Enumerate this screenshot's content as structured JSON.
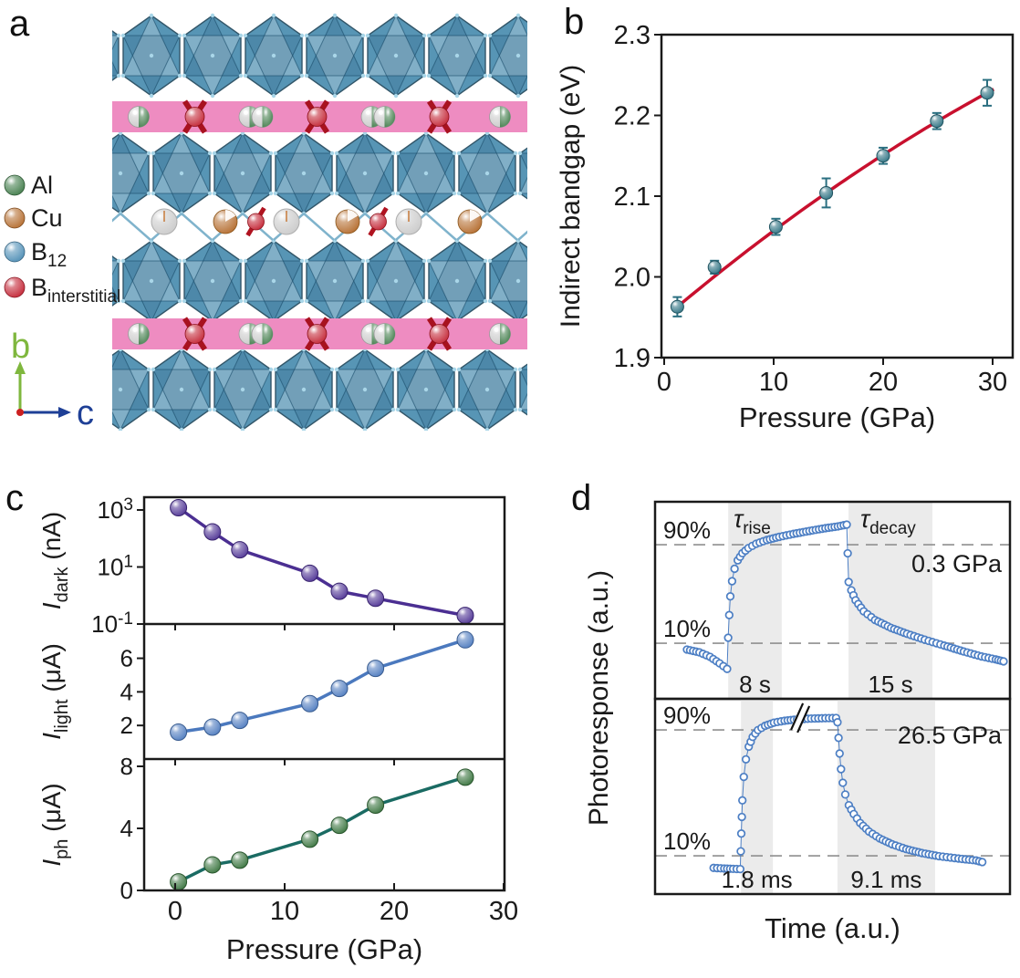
{
  "panel_labels": {
    "a": "a",
    "b": "b",
    "c": "c",
    "d": "d"
  },
  "panel_a": {
    "legend": [
      {
        "label": "Al",
        "sub": "",
        "color": "#3e7a47"
      },
      {
        "label": "Cu",
        "sub": "",
        "color": "#b3692a"
      },
      {
        "label": "B",
        "sub": "12",
        "color": "#4b8cb4"
      },
      {
        "label": "B",
        "sub": "interstitial",
        "color": "#c22030"
      }
    ],
    "axis_vertical": {
      "label": "b",
      "color": "#7fb73e"
    },
    "axis_horizontal": {
      "label": "c",
      "color": "#1e3f96"
    },
    "band_color": "#ee8cc1",
    "polyhedron_color": "#5795b5",
    "atom_white": "#f2f2f2"
  },
  "chart_data": [
    {
      "id": "bandgap",
      "type": "scatter",
      "title": "",
      "xlabel": "Pressure (GPa)",
      "ylabel": "Indirect bandgap (eV)",
      "xlim": [
        -0.8,
        32
      ],
      "ylim": [
        1.9,
        2.3
      ],
      "xticks": [
        0,
        10,
        20,
        30
      ],
      "yticks": [
        "1.9",
        "2.0",
        "2.1",
        "2.2",
        "2.3"
      ],
      "ytick_values": [
        1.9,
        2.0,
        2.1,
        2.2,
        2.3
      ],
      "x": [
        1.2,
        4.6,
        10.2,
        14.8,
        20.0,
        24.9,
        29.5
      ],
      "y": [
        1.963,
        2.012,
        2.062,
        2.104,
        2.15,
        2.193,
        2.228
      ],
      "yerr": [
        0.012,
        0.008,
        0.01,
        0.018,
        0.01,
        0.01,
        0.016
      ],
      "fit": {
        "c0": 1.9493,
        "c1": 0.011462,
        "c2": -6.835e-05,
        "range": [
          0.9,
          30.2
        ]
      },
      "marker_color": "#2a6f80",
      "fit_color": "#c8102e",
      "grid": false,
      "legend_pos": "none"
    },
    {
      "id": "currents",
      "type": "line",
      "xlabel": "Pressure (GPa)",
      "xticks": [
        0,
        10,
        20,
        30
      ],
      "xlim": [
        -2.8,
        30
      ],
      "x": [
        0.3,
        3.4,
        5.9,
        12.3,
        15.0,
        18.3,
        26.5
      ],
      "subplots": [
        {
          "ylabel": {
            "pre": "I",
            "sub": "dark",
            "post": " (nA)"
          },
          "yscale": "log",
          "ylim": [
            0.1,
            2800
          ],
          "yticks": [
            {
              "base": "10",
              "sup": "3"
            },
            {
              "base": "10",
              "sup": "1"
            },
            {
              "base": "10",
              "sup": "-1"
            }
          ],
          "ytick_values": [
            1000,
            10,
            0.1
          ],
          "values": [
            1200,
            170,
            40,
            6,
            1.4,
            0.8,
            0.2
          ],
          "line_color": "#4b2f92",
          "marker_color": "#4b2f92"
        },
        {
          "ylabel": {
            "pre": "I",
            "sub": "light",
            "post": " (μA)"
          },
          "yscale": "linear",
          "ylim": [
            0,
            8.04
          ],
          "yticks": [
            "2",
            "4",
            "6"
          ],
          "ytick_values": [
            2,
            4,
            6
          ],
          "values": [
            1.6,
            1.9,
            2.3,
            3.3,
            4.2,
            5.4,
            7.1
          ],
          "line_color": "#4b79be",
          "marker_color": "#4b79be"
        },
        {
          "ylabel": {
            "pre": "I",
            "sub": "ph",
            "post": " (μA)"
          },
          "yscale": "linear",
          "ylim": [
            0,
            8.47
          ],
          "yticks": [
            "0",
            "4",
            "8"
          ],
          "ytick_values": [
            0,
            4,
            8
          ],
          "values": [
            0.55,
            1.65,
            1.95,
            3.3,
            4.2,
            5.5,
            7.3
          ],
          "line_color": "#1a6b63",
          "marker_color": "#35713a"
        }
      ]
    },
    {
      "id": "photoresponse",
      "type": "scatter",
      "xlabel": "Time (a.u.)",
      "ylabel": "Photoresponse (a.u.)",
      "marker_color": "#4d7fc4",
      "shade_color": "#ebebeb",
      "dash_color": "#8f8f8f",
      "traces": [
        {
          "pressure": "0.3 GPa",
          "tau_rise": {
            "pre": "τ",
            "sub": "rise"
          },
          "tau_decay": {
            "pre": "τ",
            "sub": "decay"
          },
          "rise_time": "8 s",
          "decay_time": "15 s",
          "high_label": "90%",
          "low_label": "10%",
          "high": 0.218,
          "low": 0.718,
          "rise_region": [
            0.206,
            0.357
          ],
          "decay_region": [
            0.545,
            0.7815
          ],
          "points": [
            [
              0.09,
              0.75
            ],
            [
              0.125,
              0.764
            ],
            [
              0.155,
              0.787
            ],
            [
              0.182,
              0.82
            ],
            [
              0.203,
              0.848
            ],
            [
              0.206,
              0.69
            ],
            [
              0.209,
              0.575
            ],
            [
              0.212,
              0.48
            ],
            [
              0.217,
              0.403
            ],
            [
              0.224,
              0.34
            ],
            [
              0.233,
              0.297
            ],
            [
              0.246,
              0.261
            ],
            [
              0.263,
              0.235
            ],
            [
              0.285,
              0.213
            ],
            [
              0.315,
              0.194
            ],
            [
              0.35,
              0.178
            ],
            [
              0.39,
              0.163
            ],
            [
              0.435,
              0.148
            ],
            [
              0.48,
              0.134
            ],
            [
              0.515,
              0.125
            ],
            [
              0.54,
              0.116
            ],
            [
              0.5455,
              0.407
            ],
            [
              0.553,
              0.449
            ],
            [
              0.565,
              0.5
            ],
            [
              0.588,
              0.556
            ],
            [
              0.62,
              0.6
            ],
            [
              0.665,
              0.64
            ],
            [
              0.71,
              0.67
            ],
            [
              0.76,
              0.7
            ],
            [
              0.815,
              0.73
            ],
            [
              0.87,
              0.76
            ],
            [
              0.92,
              0.785
            ],
            [
              0.96,
              0.8
            ],
            [
              0.982,
              0.81
            ]
          ]
        },
        {
          "pressure": "26.5 GPa",
          "rise_time": "1.8 ms",
          "decay_time": "9.1 ms",
          "high_label": "90%",
          "low_label": "10%",
          "high": 0.159,
          "low": 0.804,
          "rise_region": [
            0.242,
            0.332
          ],
          "decay_region": [
            0.514,
            0.789
          ],
          "break_x": 0.409,
          "points": [
            [
              0.165,
              0.866
            ],
            [
              0.195,
              0.869
            ],
            [
              0.22,
              0.871
            ],
            [
              0.24,
              0.872
            ],
            [
              0.243,
              0.69
            ],
            [
              0.246,
              0.52
            ],
            [
              0.25,
              0.4
            ],
            [
              0.256,
              0.31
            ],
            [
              0.264,
              0.245
            ],
            [
              0.275,
              0.195
            ],
            [
              0.29,
              0.16
            ],
            [
              0.31,
              0.138
            ],
            [
              0.335,
              0.122
            ],
            [
              0.365,
              0.112
            ],
            [
              0.4,
              0.105
            ],
            [
              0.44,
              0.101
            ],
            [
              0.48,
              0.099
            ],
            [
              0.51,
              0.098
            ],
            [
              0.514,
              0.12
            ],
            [
              0.517,
              0.2
            ],
            [
              0.52,
              0.28
            ],
            [
              0.524,
              0.36
            ],
            [
              0.529,
              0.43
            ],
            [
              0.536,
              0.49
            ],
            [
              0.546,
              0.545
            ],
            [
              0.56,
              0.59
            ],
            [
              0.578,
              0.636
            ],
            [
              0.603,
              0.68
            ],
            [
              0.633,
              0.715
            ],
            [
              0.668,
              0.745
            ],
            [
              0.708,
              0.77
            ],
            [
              0.752,
              0.79
            ],
            [
              0.8,
              0.806
            ],
            [
              0.855,
              0.818
            ],
            [
              0.905,
              0.828
            ],
            [
              0.922,
              0.836
            ]
          ]
        }
      ]
    }
  ]
}
